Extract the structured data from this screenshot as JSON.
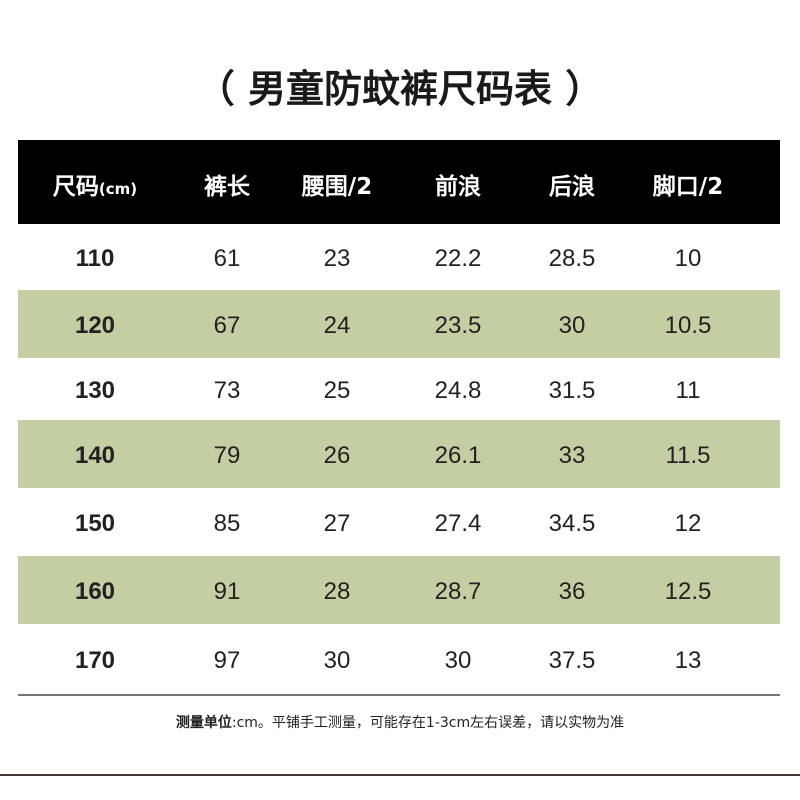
{
  "title": "（ 男童防蚊裤尺码表 ）",
  "table": {
    "header": [
      "尺码",
      "裤长",
      "腰围/2",
      "前浪",
      "后浪",
      "脚口/2"
    ],
    "header_unit": "(cm)",
    "rows": [
      [
        110,
        61,
        23,
        22.2,
        28.5,
        10
      ],
      [
        120,
        67,
        24,
        23.5,
        30,
        10.5
      ],
      [
        130,
        73,
        25,
        24.8,
        31.5,
        11
      ],
      [
        140,
        79,
        26,
        26.1,
        33,
        11.5
      ],
      [
        150,
        85,
        27,
        27.4,
        34.5,
        12
      ],
      [
        160,
        91,
        28,
        28.7,
        36,
        12.5
      ],
      [
        170,
        97,
        30,
        30,
        37.5,
        13
      ]
    ]
  },
  "note_label": "测量单位",
  "note_text": ":cm。平铺手工测量，可能存在1-3cm左右误差，请以实物为准"
}
